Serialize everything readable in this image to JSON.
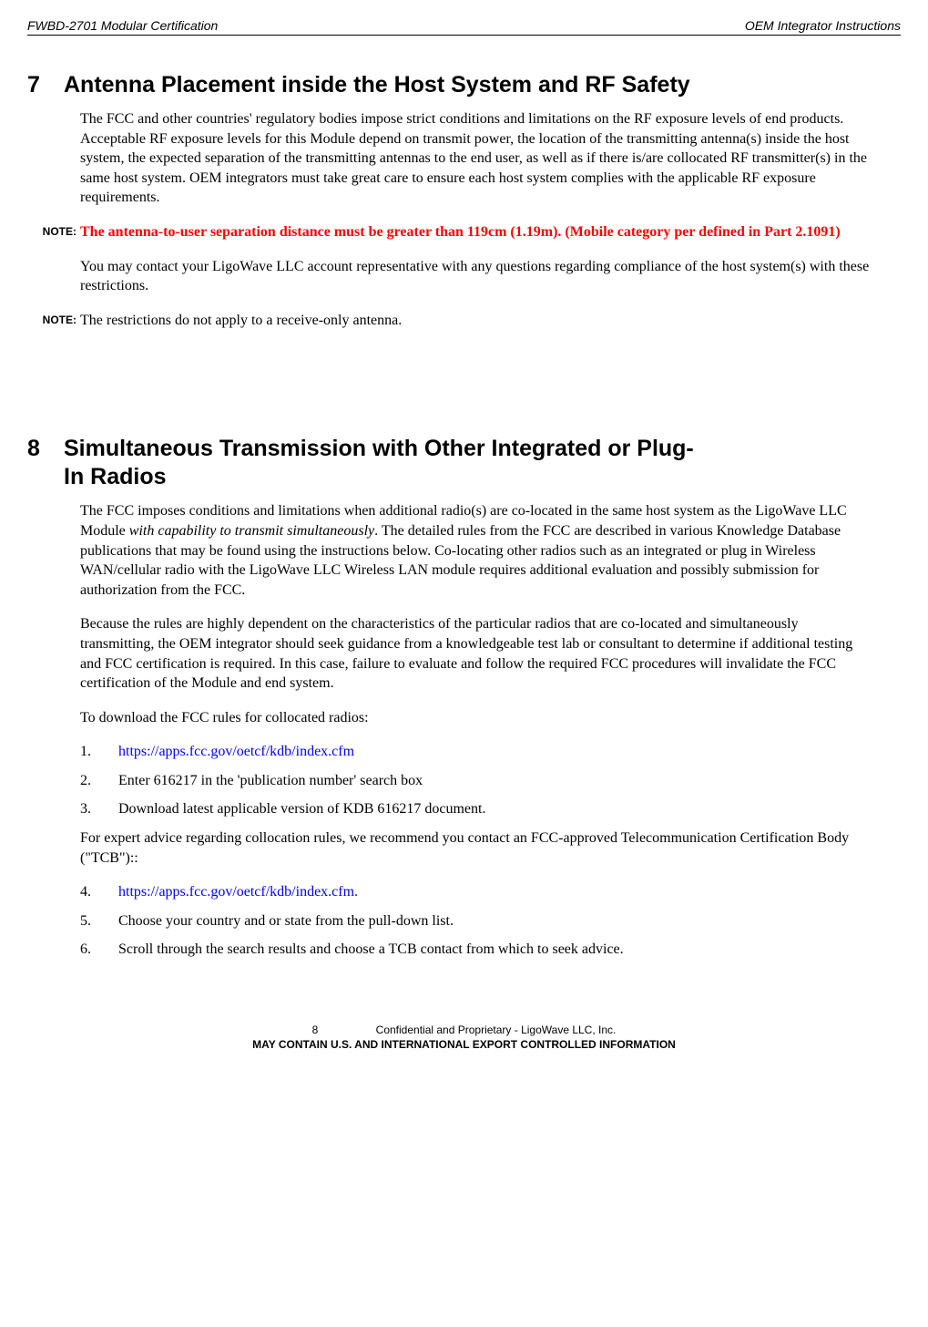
{
  "header": {
    "left": "FWBD-2701 Modular Certification",
    "right": "OEM Integrator Instructions"
  },
  "section7": {
    "number": "7",
    "title": "Antenna Placement inside the Host System and RF Safety",
    "para1": "The FCC and other countries' regulatory bodies impose strict conditions and limitations on the RF exposure levels of end products.    Acceptable RF exposure levels for this Module depend on transmit power, the location of the transmitting antenna(s) inside the host system,    the expected separation of the transmitting antennas to the end user, as well as if there is/are collocated RF transmitter(s) in the same host system.    OEM integrators must take great care to ensure each host system complies with the applicable RF exposure requirements.",
    "note1_label": "NOTE:",
    "note1_body": "The antenna-to-user separation distance must be greater than 119cm (1.19m). (Mobile category per defined in Part 2.1091)",
    "para2": "You may contact your LigoWave LLC account representative with any questions regarding compliance of the host system(s) with these restrictions.",
    "note2_label": "NOTE:",
    "note2_body": "The restrictions do not apply to a receive-only antenna."
  },
  "section8": {
    "number": "8",
    "title_line1": "Simultaneous Transmission with Other Integrated or Plug-",
    "title_line2": "In Radios",
    "para1a": "The FCC imposes conditions and limitations when additional radio(s) are co-located in the same host system as the LigoWave LLC Module ",
    "para1_italic": "with capability to transmit simultaneously",
    "para1b": ".    The detailed rules from the FCC are described in various Knowledge Database publications that may be found using the instructions below.    Co-locating other radios such as an integrated or plug in Wireless WAN/cellular radio with the LigoWave LLC Wireless LAN module requires additional evaluation and possibly submission for authorization from the FCC.",
    "para2": "Because the rules are highly dependent on the characteristics of the particular radios that are co-located and simultaneously transmitting, the OEM integrator should seek guidance from a knowledgeable test lab or consultant to determine if additional testing and FCC certification is required.    In this case, failure to evaluate and follow the required FCC procedures will invalidate the FCC certification of the Module and end system.",
    "para3": "To download the FCC rules for collocated radios:",
    "item1_num": "1.",
    "item1_body": "https://apps.fcc.gov/oetcf/kdb/index.cfm",
    "item2_num": "2.",
    "item2_body": "Enter 616217 in the 'publication number' search box",
    "item3_num": "3.",
    "item3_body": "Download latest applicable version    of KDB 616217 document.",
    "para4": "For expert advice regarding collocation rules, we recommend you contact an FCC-approved Telecommunication Certification Body (\"TCB\")::",
    "item4_num": "4.",
    "item4_body": "https://apps.fcc.gov/oetcf/kdb/index.cfm.",
    "item5_num": "5.",
    "item5_body": "Choose your    country and or state from the pull-down list.",
    "item6_num": "6.",
    "item6_body": "Scroll through the search results and choose a TCB contact from which to seek advice."
  },
  "footer": {
    "pagenum": "8",
    "conf": "Confidential and Proprietary - LigoWave LLC, Inc.",
    "export": "MAY CONTAIN U.S. AND INTERNATIONAL EXPORT CONTROLLED INFORMATION"
  }
}
